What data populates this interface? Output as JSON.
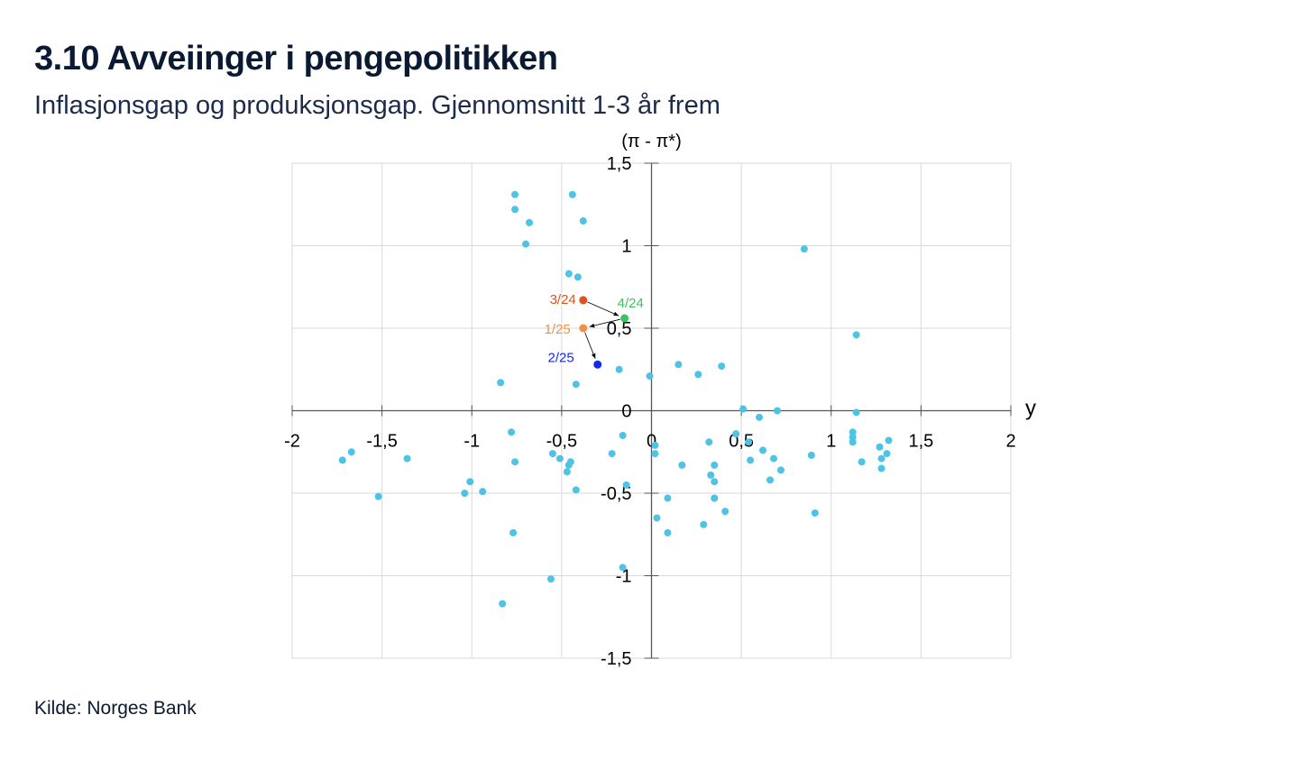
{
  "title": "3.10 Avveiinger i pengepolitikken",
  "subtitle": "Inflasjonsgap og produksjonsgap. Gjennomsnitt 1-3 år frem",
  "source": "Kilde: Norges Bank",
  "chart_data": {
    "type": "scatter",
    "xlabel": "y",
    "ylabel": "(π - π*)",
    "xlim": [
      -2,
      2
    ],
    "ylim": [
      -1.5,
      1.5
    ],
    "xticks": [
      "-2",
      "-1,5",
      "-1",
      "-0,5",
      "0",
      "0,5",
      "1",
      "1,5",
      "2"
    ],
    "xtick_values": [
      -2,
      -1.5,
      -1,
      -0.5,
      0,
      0.5,
      1,
      1.5,
      2
    ],
    "yticks": [
      "1,5",
      "1",
      "0,5",
      "0",
      "-0,5",
      "-1",
      "-1,5"
    ],
    "ytick_values": [
      1.5,
      1,
      0.5,
      0,
      -0.5,
      -1,
      -1.5
    ],
    "grid": true,
    "point_color": "#4dc3e5",
    "points": [
      [
        -0.76,
        1.31
      ],
      [
        -0.76,
        1.22
      ],
      [
        -0.68,
        1.14
      ],
      [
        -0.7,
        1.01
      ],
      [
        -0.44,
        1.31
      ],
      [
        -0.38,
        1.15
      ],
      [
        -0.46,
        0.83
      ],
      [
        -0.41,
        0.81
      ],
      [
        0.85,
        0.98
      ],
      [
        1.14,
        0.46
      ],
      [
        -0.84,
        0.17
      ],
      [
        -0.42,
        0.16
      ],
      [
        -0.18,
        0.25
      ],
      [
        -0.01,
        0.21
      ],
      [
        0.15,
        0.28
      ],
      [
        0.26,
        0.22
      ],
      [
        0.39,
        0.27
      ],
      [
        0.51,
        0.01
      ],
      [
        0.6,
        -0.04
      ],
      [
        0.7,
        0.0
      ],
      [
        1.14,
        -0.01
      ],
      [
        -0.78,
        -0.13
      ],
      [
        -0.76,
        -0.31
      ],
      [
        -1.67,
        -0.25
      ],
      [
        -1.72,
        -0.3
      ],
      [
        -1.36,
        -0.29
      ],
      [
        -1.52,
        -0.52
      ],
      [
        -1.01,
        -0.43
      ],
      [
        -1.04,
        -0.5
      ],
      [
        -0.94,
        -0.49
      ],
      [
        -0.55,
        -0.26
      ],
      [
        -0.51,
        -0.29
      ],
      [
        -0.46,
        -0.33
      ],
      [
        -0.45,
        -0.31
      ],
      [
        -0.47,
        -0.37
      ],
      [
        -0.42,
        -0.48
      ],
      [
        -0.22,
        -0.26
      ],
      [
        -0.16,
        -0.15
      ],
      [
        -0.14,
        -0.45
      ],
      [
        0.02,
        -0.21
      ],
      [
        0.02,
        -0.26
      ],
      [
        0.17,
        -0.33
      ],
      [
        0.32,
        -0.19
      ],
      [
        0.35,
        -0.33
      ],
      [
        0.33,
        -0.39
      ],
      [
        0.35,
        -0.43
      ],
      [
        0.35,
        -0.53
      ],
      [
        0.35,
        -0.53
      ],
      [
        0.41,
        -0.61
      ],
      [
        0.09,
        -0.53
      ],
      [
        0.03,
        -0.65
      ],
      [
        0.09,
        -0.74
      ],
      [
        0.29,
        -0.69
      ],
      [
        0.47,
        -0.14
      ],
      [
        0.54,
        -0.19
      ],
      [
        0.55,
        -0.3
      ],
      [
        0.62,
        -0.24
      ],
      [
        0.68,
        -0.29
      ],
      [
        0.72,
        -0.36
      ],
      [
        0.66,
        -0.42
      ],
      [
        0.89,
        -0.27
      ],
      [
        0.91,
        -0.62
      ],
      [
        1.12,
        -0.13
      ],
      [
        1.12,
        -0.16
      ],
      [
        1.12,
        -0.19
      ],
      [
        1.17,
        -0.31
      ],
      [
        1.27,
        -0.22
      ],
      [
        1.32,
        -0.18
      ],
      [
        1.31,
        -0.26
      ],
      [
        1.28,
        -0.29
      ],
      [
        1.28,
        -0.35
      ],
      [
        -0.77,
        -0.74
      ],
      [
        -0.16,
        -0.95
      ],
      [
        -0.56,
        -1.02
      ],
      [
        -0.83,
        -1.17
      ]
    ],
    "highlighted": [
      {
        "label": "3/24",
        "x": -0.38,
        "y": 0.67,
        "color": "#e0521d"
      },
      {
        "label": "4/24",
        "x": -0.15,
        "y": 0.56,
        "color": "#3cc35f"
      },
      {
        "label": "1/25",
        "x": -0.38,
        "y": 0.5,
        "color": "#f2924a"
      },
      {
        "label": "2/25",
        "x": -0.3,
        "y": 0.28,
        "color": "#1428f0"
      }
    ]
  }
}
